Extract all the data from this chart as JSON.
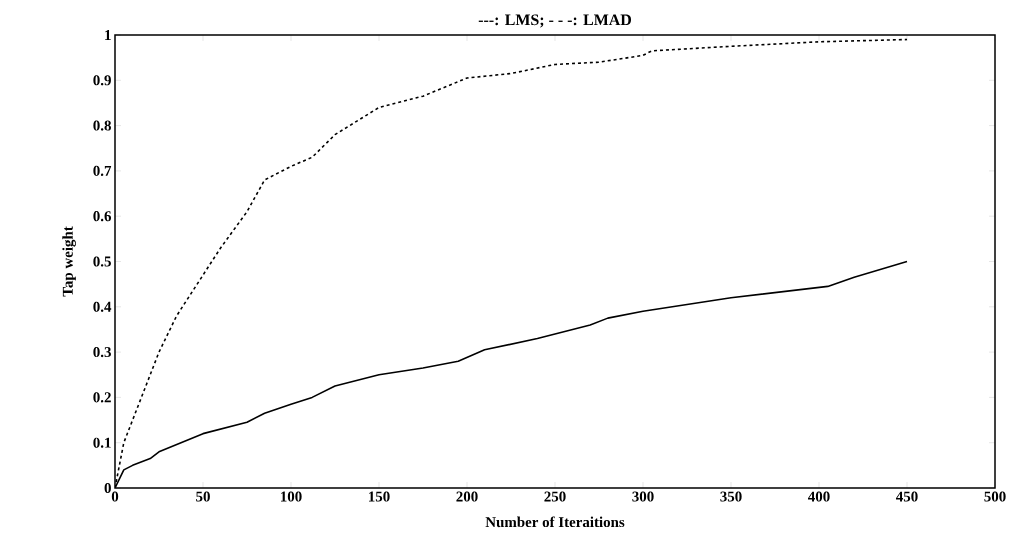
{
  "chart_data": {
    "type": "line",
    "title": "---: LMS;  - - -: LMAD",
    "xlabel": "Number of Iteraitions",
    "ylabel": "Tap weight",
    "xlim": [
      0,
      500
    ],
    "ylim": [
      0,
      1
    ],
    "xticks": [
      0,
      50,
      100,
      150,
      200,
      250,
      300,
      350,
      400,
      450,
      500
    ],
    "yticks": [
      0,
      0.1,
      0.2,
      0.3,
      0.4,
      0.5,
      0.6,
      0.7,
      0.8,
      0.9,
      1
    ],
    "grid": false,
    "series": [
      {
        "color": "#000000",
        "line_style": "dashed",
        "x": [
          0,
          5,
          10,
          25,
          35,
          50,
          60,
          75,
          85,
          100,
          112,
          125,
          150,
          175,
          200,
          225,
          250,
          275,
          300,
          305,
          350,
          400,
          450
        ],
        "values": [
          0,
          0.1,
          0.15,
          0.3,
          0.38,
          0.47,
          0.53,
          0.61,
          0.68,
          0.71,
          0.73,
          0.78,
          0.84,
          0.865,
          0.905,
          0.915,
          0.935,
          0.94,
          0.955,
          0.965,
          0.975,
          0.985,
          0.99
        ]
      },
      {
        "color": "#000000",
        "line_style": "solid",
        "x": [
          0,
          5,
          10,
          20,
          25,
          50,
          75,
          85,
          100,
          112,
          125,
          150,
          175,
          195,
          210,
          240,
          270,
          280,
          300,
          350,
          405,
          420,
          450
        ],
        "values": [
          0,
          0.04,
          0.05,
          0.065,
          0.08,
          0.12,
          0.145,
          0.165,
          0.185,
          0.2,
          0.225,
          0.25,
          0.265,
          0.28,
          0.305,
          0.33,
          0.36,
          0.375,
          0.39,
          0.42,
          0.445,
          0.465,
          0.5
        ]
      }
    ]
  }
}
